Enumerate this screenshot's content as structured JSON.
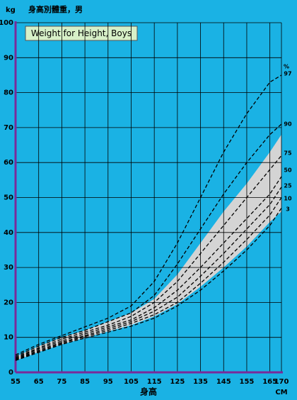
{
  "chart_data": {
    "type": "line",
    "title": "身高別體重，男",
    "subtitle": "Weight for Height, Boys",
    "y_label": "kg",
    "x_label": "身高",
    "x_unit": "CM",
    "series_unit": "%",
    "x": [
      55,
      65,
      75,
      85,
      95,
      105,
      115,
      125,
      135,
      145,
      155,
      165,
      170
    ],
    "series": [
      {
        "name": "97",
        "color": "#000000",
        "values": [
          5,
          8,
          10.5,
          13,
          15.5,
          19,
          26,
          37,
          50,
          63,
          74,
          83,
          85
        ]
      },
      {
        "name": "90",
        "color": "#000000",
        "values": [
          4.6,
          7.5,
          10,
          12,
          14.5,
          17,
          22,
          31,
          41,
          51,
          60,
          68,
          71
        ]
      },
      {
        "name": "75",
        "color": "#000000",
        "values": [
          4.3,
          7,
          9.5,
          11.5,
          13.5,
          16,
          20,
          26,
          34,
          42,
          50,
          58,
          62
        ]
      },
      {
        "name": "50",
        "color": "#000000",
        "values": [
          4,
          6.7,
          9,
          11,
          13,
          15,
          18.5,
          23.5,
          30,
          37,
          44,
          51,
          56
        ]
      },
      {
        "name": "25",
        "color": "#000000",
        "values": [
          3.8,
          6.3,
          8.6,
          10.5,
          12.5,
          14.5,
          17.5,
          21.5,
          27.5,
          34,
          41,
          48,
          53
        ]
      },
      {
        "name": "10",
        "color": "#000000",
        "values": [
          3.6,
          6,
          8.3,
          10.2,
          12,
          14,
          16.5,
          20,
          25.5,
          31.5,
          38,
          45,
          50
        ]
      },
      {
        "name": "3",
        "color": "#000000",
        "values": [
          3.4,
          5.7,
          8,
          9.8,
          11.5,
          13.2,
          15.5,
          19,
          23.5,
          29,
          35,
          42,
          47
        ]
      }
    ],
    "line_style": "dashed",
    "band": {
      "color": "#d4d4d4",
      "upper": [
        4.5,
        7.5,
        10,
        12,
        14.5,
        17,
        21,
        28,
        37,
        46,
        54,
        63,
        68
      ],
      "lower": [
        3.4,
        5.8,
        8,
        9.9,
        11.7,
        13.5,
        16,
        19.5,
        24.5,
        30,
        36,
        43,
        46
      ]
    },
    "xlim": [
      55,
      170
    ],
    "ylim": [
      0,
      100
    ],
    "xticks": [
      55,
      65,
      75,
      85,
      95,
      105,
      115,
      125,
      135,
      145,
      155,
      165,
      170
    ],
    "yticks": [
      0,
      10,
      20,
      30,
      40,
      50,
      60,
      70,
      80,
      90,
      100
    ],
    "grid": true,
    "background": "#1ab2e4",
    "axis_color": "#7a2a9a"
  }
}
